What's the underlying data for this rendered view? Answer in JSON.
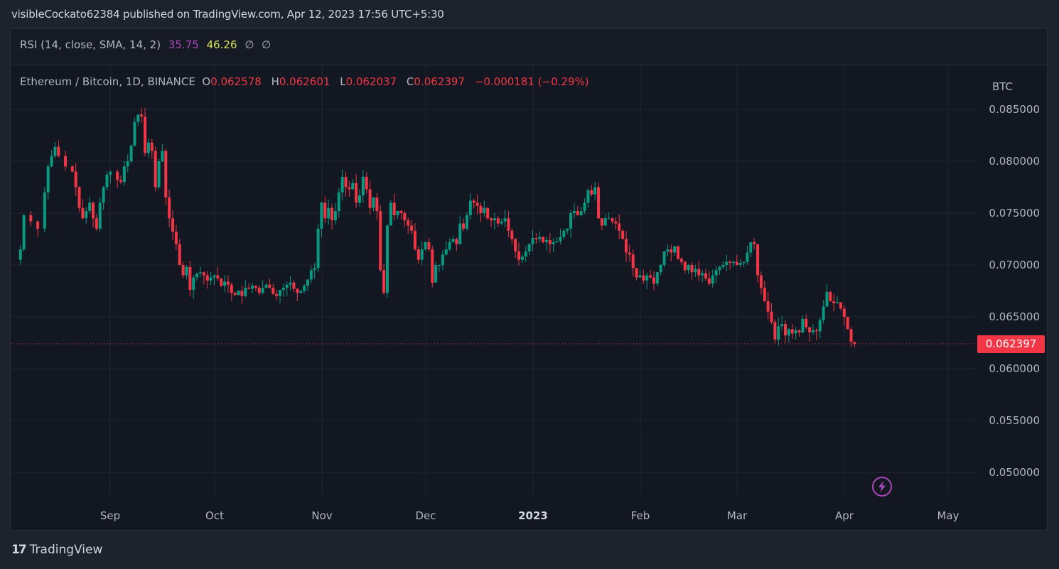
{
  "header": {
    "published_text": "visibleCockato62384 published on TradingView.com, Apr 12, 2023 17:56 UTC+5:30"
  },
  "rsi": {
    "label": "RSI (14, close, SMA, 14, 2)",
    "value_rsi": "35.75",
    "value_sma": "46.26",
    "extra1": "∅",
    "extra2": "∅"
  },
  "legend": {
    "symbol": "Ethereum / Bitcoin, 1D, BINANCE",
    "open_label": "O",
    "open": "0.062578",
    "high_label": "H",
    "high": "0.062601",
    "low_label": "L",
    "low": "0.062037",
    "close_label": "C",
    "close": "0.062397",
    "change": "−0.000181 (−0.29%)"
  },
  "price_scale": {
    "currency": "BTC",
    "ticks": [
      "0.085000",
      "0.080000",
      "0.075000",
      "0.070000",
      "0.065000",
      "0.060000",
      "0.055000",
      "0.050000"
    ],
    "last_price": "0.062397"
  },
  "time_axis": {
    "ticks": [
      "Sep",
      "Oct",
      "Nov",
      "Dec",
      "2023",
      "Feb",
      "Mar",
      "Apr",
      "May"
    ]
  },
  "footer": {
    "brand": "TradingView",
    "logo": "17"
  },
  "colors": {
    "up": "#089981",
    "down": "#f23645",
    "grid": "#232632",
    "background": "#131722",
    "rsi_line": "#ab47bc",
    "rsi_sma": "#d4e157"
  },
  "chart_data": {
    "type": "candlestick",
    "title": "Ethereum / Bitcoin, 1D, BINANCE",
    "xlabel": "",
    "ylabel": "BTC",
    "ylim": [
      0.0475,
      0.0885
    ],
    "x_ticks": [
      "Sep",
      "Oct",
      "Nov",
      "Dec",
      "2023",
      "Feb",
      "Mar",
      "Apr",
      "May"
    ],
    "y_ticks": [
      0.085,
      0.08,
      0.075,
      0.07,
      0.065,
      0.06,
      0.055,
      0.05
    ],
    "grid": true,
    "period": "2022-08-04 to 2023-04-12 (daily)",
    "last_candle": {
      "open": 0.062578,
      "high": 0.062601,
      "low": 0.062037,
      "close": 0.062397
    },
    "close_anchors": [
      [
        0,
        0.0705
      ],
      [
        2,
        0.0715
      ],
      [
        3,
        0.0748
      ],
      [
        5,
        0.0742
      ],
      [
        7,
        0.0735
      ],
      [
        9,
        0.077
      ],
      [
        10,
        0.0795
      ],
      [
        11,
        0.0805
      ],
      [
        12,
        0.0814
      ],
      [
        13,
        0.0805
      ],
      [
        15,
        0.0795
      ],
      [
        17,
        0.079
      ],
      [
        18,
        0.0775
      ],
      [
        19,
        0.0755
      ],
      [
        20,
        0.0745
      ],
      [
        21,
        0.0752
      ],
      [
        22,
        0.076
      ],
      [
        23,
        0.0745
      ],
      [
        24,
        0.0735
      ],
      [
        25,
        0.076
      ],
      [
        26,
        0.0775
      ],
      [
        27,
        0.0787
      ],
      [
        28,
        0.079
      ],
      [
        30,
        0.0782
      ],
      [
        31,
        0.078
      ],
      [
        32,
        0.0795
      ],
      [
        33,
        0.08
      ],
      [
        34,
        0.0815
      ],
      [
        35,
        0.0838
      ],
      [
        36,
        0.0845
      ],
      [
        37,
        0.0843
      ],
      [
        38,
        0.0808
      ],
      [
        39,
        0.0818
      ],
      [
        40,
        0.081
      ],
      [
        41,
        0.0775
      ],
      [
        42,
        0.08
      ],
      [
        43,
        0.081
      ],
      [
        44,
        0.0765
      ],
      [
        45,
        0.0745
      ],
      [
        46,
        0.0732
      ],
      [
        47,
        0.072
      ],
      [
        48,
        0.07
      ],
      [
        49,
        0.069
      ],
      [
        50,
        0.0698
      ],
      [
        51,
        0.0676
      ],
      [
        52,
        0.0688
      ],
      [
        53,
        0.0692
      ],
      [
        54,
        0.0693
      ],
      [
        55,
        0.069
      ],
      [
        56,
        0.0685
      ],
      [
        57,
        0.0688
      ],
      [
        58,
        0.069
      ],
      [
        59,
        0.0687
      ],
      [
        60,
        0.068
      ],
      [
        61,
        0.0684
      ],
      [
        62,
        0.0681
      ],
      [
        63,
        0.0673
      ],
      [
        64,
        0.0671
      ],
      [
        65,
        0.0675
      ],
      [
        66,
        0.067
      ],
      [
        67,
        0.0678
      ],
      [
        68,
        0.0677
      ],
      [
        69,
        0.068
      ],
      [
        70,
        0.0678
      ],
      [
        71,
        0.0673
      ],
      [
        72,
        0.0678
      ],
      [
        73,
        0.0681
      ],
      [
        74,
        0.0678
      ],
      [
        75,
        0.0672
      ],
      [
        76,
        0.067
      ],
      [
        77,
        0.0676
      ],
      [
        78,
        0.0678
      ],
      [
        79,
        0.0681
      ],
      [
        80,
        0.0683
      ],
      [
        81,
        0.0677
      ],
      [
        82,
        0.0673
      ],
      [
        83,
        0.0675
      ],
      [
        84,
        0.068
      ],
      [
        85,
        0.0686
      ],
      [
        86,
        0.0695
      ],
      [
        87,
        0.0697
      ],
      [
        88,
        0.0735
      ],
      [
        89,
        0.076
      ],
      [
        90,
        0.0745
      ],
      [
        91,
        0.0755
      ],
      [
        92,
        0.0743
      ],
      [
        93,
        0.0752
      ],
      [
        94,
        0.077
      ],
      [
        95,
        0.0785
      ],
      [
        96,
        0.0775
      ],
      [
        97,
        0.0773
      ],
      [
        98,
        0.0779
      ],
      [
        99,
        0.076
      ],
      [
        100,
        0.0767
      ],
      [
        101,
        0.0785
      ],
      [
        102,
        0.0773
      ],
      [
        103,
        0.0755
      ],
      [
        104,
        0.0765
      ],
      [
        105,
        0.0752
      ],
      [
        106,
        0.0695
      ],
      [
        107,
        0.0673
      ],
      [
        108,
        0.0738
      ],
      [
        109,
        0.076
      ],
      [
        110,
        0.0748
      ],
      [
        111,
        0.0752
      ],
      [
        112,
        0.075
      ],
      [
        113,
        0.0743
      ],
      [
        114,
        0.0738
      ],
      [
        115,
        0.0733
      ],
      [
        116,
        0.0715
      ],
      [
        117,
        0.0705
      ],
      [
        118,
        0.0715
      ],
      [
        119,
        0.0722
      ],
      [
        120,
        0.0715
      ],
      [
        121,
        0.0683
      ],
      [
        122,
        0.07
      ],
      [
        123,
        0.07
      ],
      [
        124,
        0.071
      ],
      [
        125,
        0.0715
      ],
      [
        126,
        0.0722
      ],
      [
        127,
        0.0725
      ],
      [
        128,
        0.072
      ],
      [
        129,
        0.074
      ],
      [
        130,
        0.0735
      ],
      [
        131,
        0.0748
      ],
      [
        132,
        0.0762
      ],
      [
        133,
        0.076
      ],
      [
        134,
        0.0757
      ],
      [
        135,
        0.075
      ],
      [
        136,
        0.0755
      ],
      [
        137,
        0.0745
      ],
      [
        138,
        0.0743
      ],
      [
        139,
        0.0745
      ],
      [
        140,
        0.074
      ],
      [
        141,
        0.0742
      ],
      [
        142,
        0.0745
      ],
      [
        143,
        0.0733
      ],
      [
        144,
        0.0725
      ],
      [
        145,
        0.0713
      ],
      [
        146,
        0.0705
      ],
      [
        147,
        0.0708
      ],
      [
        148,
        0.0713
      ],
      [
        149,
        0.072
      ],
      [
        150,
        0.0726
      ],
      [
        151,
        0.0725
      ],
      [
        152,
        0.0727
      ],
      [
        153,
        0.0722
      ],
      [
        154,
        0.0724
      ],
      [
        155,
        0.072
      ],
      [
        156,
        0.0722
      ],
      [
        157,
        0.0723
      ],
      [
        158,
        0.0727
      ],
      [
        159,
        0.0733
      ],
      [
        160,
        0.0735
      ],
      [
        161,
        0.075
      ],
      [
        162,
        0.0752
      ],
      [
        163,
        0.0748
      ],
      [
        164,
        0.0752
      ],
      [
        165,
        0.076
      ],
      [
        166,
        0.0772
      ],
      [
        167,
        0.0768
      ],
      [
        168,
        0.0775
      ],
      [
        169,
        0.0745
      ],
      [
        170,
        0.0738
      ],
      [
        171,
        0.0745
      ],
      [
        172,
        0.0745
      ],
      [
        173,
        0.0742
      ],
      [
        174,
        0.074
      ],
      [
        175,
        0.0733
      ],
      [
        176,
        0.0725
      ],
      [
        177,
        0.0712
      ],
      [
        178,
        0.071
      ],
      [
        179,
        0.0697
      ],
      [
        180,
        0.0688
      ],
      [
        181,
        0.069
      ],
      [
        182,
        0.0685
      ],
      [
        183,
        0.069
      ],
      [
        184,
        0.0688
      ],
      [
        185,
        0.0682
      ],
      [
        186,
        0.0693
      ],
      [
        187,
        0.07
      ],
      [
        188,
        0.0713
      ],
      [
        189,
        0.0715
      ],
      [
        190,
        0.0712
      ],
      [
        191,
        0.0718
      ],
      [
        192,
        0.0706
      ],
      [
        193,
        0.0703
      ],
      [
        194,
        0.0695
      ],
      [
        195,
        0.07
      ],
      [
        196,
        0.0693
      ],
      [
        197,
        0.0696
      ],
      [
        198,
        0.069
      ],
      [
        199,
        0.0692
      ],
      [
        200,
        0.0687
      ],
      [
        201,
        0.0682
      ],
      [
        202,
        0.069
      ],
      [
        203,
        0.0695
      ],
      [
        204,
        0.0698
      ],
      [
        205,
        0.07
      ],
      [
        206,
        0.0703
      ],
      [
        207,
        0.0702
      ],
      [
        208,
        0.0703
      ],
      [
        209,
        0.07
      ],
      [
        210,
        0.0702
      ],
      [
        211,
        0.0703
      ],
      [
        212,
        0.0712
      ],
      [
        213,
        0.0722
      ],
      [
        214,
        0.072
      ],
      [
        215,
        0.069
      ],
      [
        216,
        0.0678
      ],
      [
        217,
        0.0665
      ],
      [
        218,
        0.0655
      ],
      [
        219,
        0.0645
      ],
      [
        220,
        0.0628
      ],
      [
        221,
        0.0641
      ],
      [
        222,
        0.0643
      ],
      [
        223,
        0.0632
      ],
      [
        224,
        0.0638
      ],
      [
        225,
        0.0634
      ],
      [
        226,
        0.0637
      ],
      [
        227,
        0.0635
      ],
      [
        228,
        0.0648
      ],
      [
        229,
        0.064
      ],
      [
        230,
        0.0635
      ],
      [
        231,
        0.0637
      ],
      [
        232,
        0.0636
      ],
      [
        233,
        0.0647
      ],
      [
        234,
        0.066
      ],
      [
        235,
        0.0674
      ],
      [
        236,
        0.0665
      ],
      [
        237,
        0.0663
      ],
      [
        238,
        0.0664
      ],
      [
        239,
        0.0658
      ],
      [
        240,
        0.065
      ],
      [
        241,
        0.0638
      ],
      [
        242,
        0.0626
      ],
      [
        243,
        0.0624
      ]
    ]
  }
}
